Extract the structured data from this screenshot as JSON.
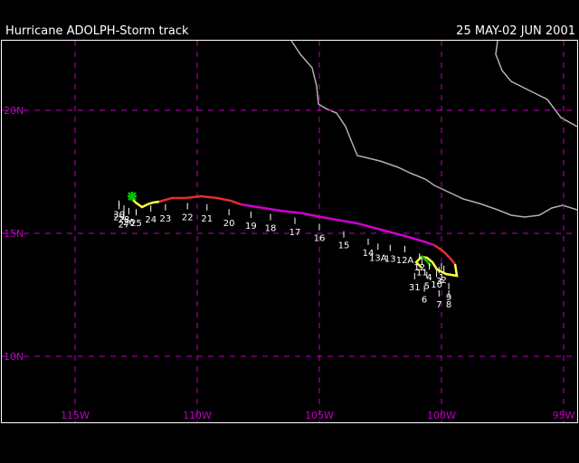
{
  "header": {
    "title": "Hurricane ADOLPH-Storm track",
    "dates": "25 MAY-02 JUN 2001"
  },
  "map": {
    "lon_labels": [
      "115W",
      "110W",
      "105W",
      "100W",
      "95W"
    ],
    "lat_labels": [
      "20N",
      "15N",
      "10N"
    ],
    "lon_values": [
      -115,
      -110,
      -105,
      -100,
      -95
    ],
    "lat_values": [
      20,
      15,
      10
    ],
    "grid_color": "#c000c0",
    "land_outline_color": "#b0b0b0",
    "frame_color": "#ffffff"
  },
  "track": {
    "colors": {
      "tropical_depression": "#00c000",
      "tropical_storm": "#ffff40",
      "category_1": "#e03030",
      "category_4": "#d000d0",
      "start_marker": "#00c000"
    },
    "labels": [
      {
        "text": "1",
        "lon": -100.0,
        "lat": 13.6
      },
      {
        "text": "2",
        "lon": -99.9,
        "lat": 13.5
      },
      {
        "text": "3",
        "lon": -100.1,
        "lat": 13.45
      },
      {
        "text": "4",
        "lon": -100.5,
        "lat": 13.6
      },
      {
        "text": "5",
        "lon": -100.6,
        "lat": 13.25
      },
      {
        "text": "6",
        "lon": -100.7,
        "lat": 12.7
      },
      {
        "text": "7",
        "lon": -100.1,
        "lat": 12.5
      },
      {
        "text": "8",
        "lon": -99.7,
        "lat": 12.5
      },
      {
        "text": "9",
        "lon": -99.7,
        "lat": 12.8
      },
      {
        "text": "10",
        "lon": -100.2,
        "lat": 13.3
      },
      {
        "text": "11",
        "lon": -100.8,
        "lat": 13.8
      },
      {
        "text": "12",
        "lon": -100.9,
        "lat": 14.0
      },
      {
        "text": "12A",
        "lon": -101.5,
        "lat": 14.3
      },
      {
        "text": "13",
        "lon": -102.1,
        "lat": 14.35
      },
      {
        "text": "13A",
        "lon": -102.6,
        "lat": 14.4
      },
      {
        "text": "14",
        "lon": -103.0,
        "lat": 14.6
      },
      {
        "text": "15",
        "lon": -104.0,
        "lat": 14.9
      },
      {
        "text": "16",
        "lon": -105.0,
        "lat": 15.2
      },
      {
        "text": "17",
        "lon": -106.0,
        "lat": 15.45
      },
      {
        "text": "18",
        "lon": -107.0,
        "lat": 15.6
      },
      {
        "text": "19",
        "lon": -107.8,
        "lat": 15.7
      },
      {
        "text": "20",
        "lon": -108.7,
        "lat": 15.8
      },
      {
        "text": "21",
        "lon": -109.6,
        "lat": 16.0
      },
      {
        "text": "22",
        "lon": -110.4,
        "lat": 16.05
      },
      {
        "text": "23",
        "lon": -111.3,
        "lat": 16.0
      },
      {
        "text": "24",
        "lon": -111.9,
        "lat": 15.95
      },
      {
        "text": "25",
        "lon": -112.5,
        "lat": 15.8
      },
      {
        "text": "26",
        "lon": -112.8,
        "lat": 15.85
      },
      {
        "text": "27",
        "lon": -113.0,
        "lat": 15.75
      },
      {
        "text": "28",
        "lon": -113.0,
        "lat": 15.95
      },
      {
        "text": "29",
        "lon": -113.2,
        "lat": 16.05
      },
      {
        "text": "30",
        "lon": -113.2,
        "lat": 16.15
      },
      {
        "text": "31",
        "lon": -101.1,
        "lat": 13.2
      }
    ]
  }
}
